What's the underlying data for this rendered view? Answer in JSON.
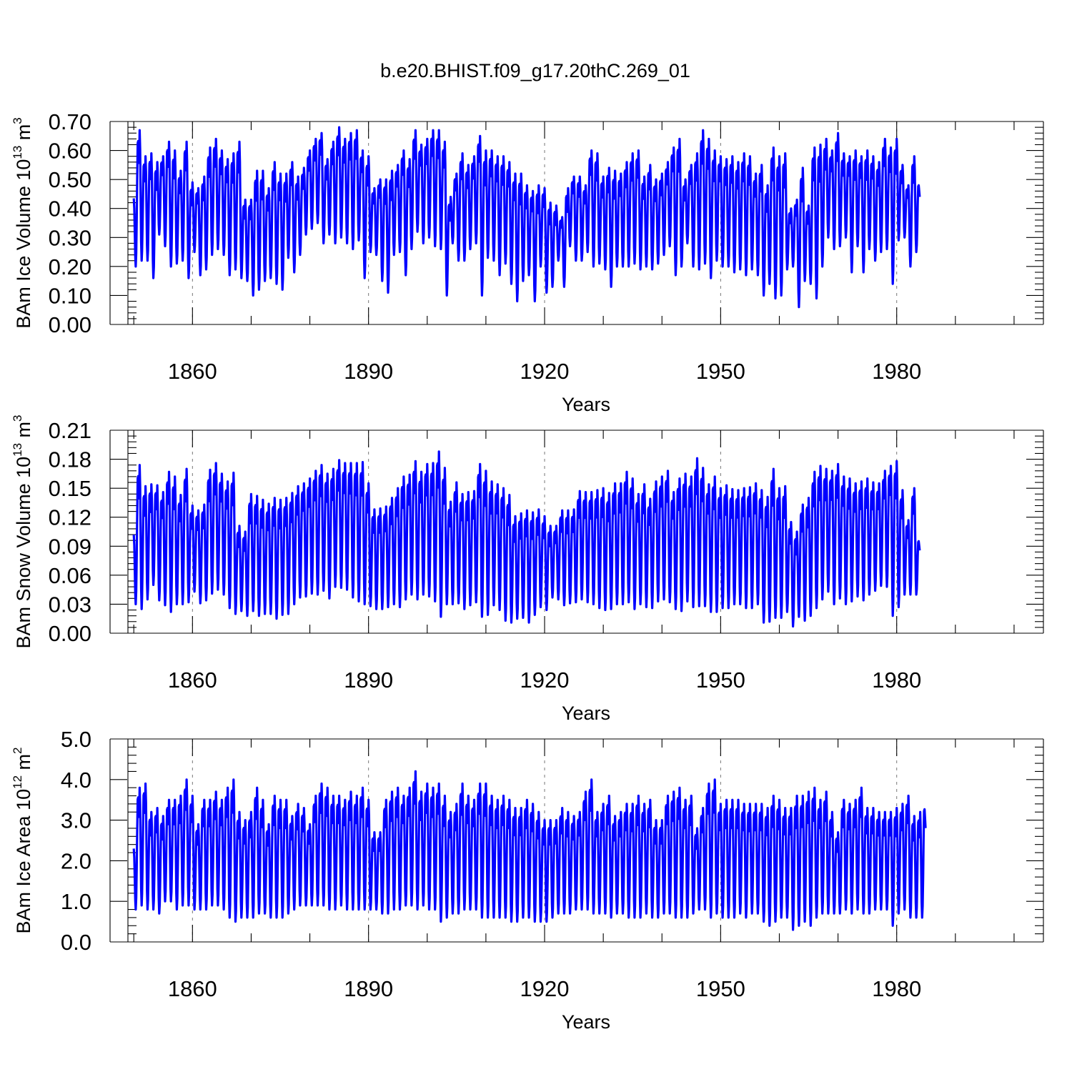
{
  "title": "b.e20.BHIST.f09_g17.20thC.269_01",
  "chart_data": [
    {
      "type": "line",
      "ylabel_main": "BAm Ice Volume 10",
      "ylabel_sup": "13",
      "ylabel_unit": " m",
      "ylabel_unit_sup": "3",
      "xlabel": "Years",
      "xlim": [
        1849,
        2005
      ],
      "ylim": [
        0,
        0.7
      ],
      "yticks": [
        "0.00",
        "0.10",
        "0.20",
        "0.30",
        "0.40",
        "0.50",
        "0.60",
        "0.70"
      ],
      "xticks": [
        "1860",
        "1890",
        "1920",
        "1950",
        "1980"
      ],
      "grid": "dashed vertical at labeled years",
      "line_color": "#0000ff",
      "series": [
        {
          "year_start": 1850,
          "annual_max": [
            0.67,
            0.58,
            0.59,
            0.56,
            0.58,
            0.63,
            0.6,
            0.53,
            0.63,
            0.49,
            0.47,
            0.51,
            0.61,
            0.64,
            0.6,
            0.57,
            0.59,
            0.63,
            0.43,
            0.43,
            0.53,
            0.53,
            0.47,
            0.56,
            0.52,
            0.52,
            0.56,
            0.51,
            0.54,
            0.6,
            0.64,
            0.66,
            0.57,
            0.63,
            0.68,
            0.64,
            0.66,
            0.67,
            0.6,
            0.58,
            0.47,
            0.5,
            0.5,
            0.53,
            0.55,
            0.6,
            0.57,
            0.67,
            0.62,
            0.64,
            0.67,
            0.67,
            0.63,
            0.44,
            0.52,
            0.59,
            0.55,
            0.58,
            0.65,
            0.6,
            0.6,
            0.58,
            0.58,
            0.56,
            0.52,
            0.52,
            0.48,
            0.46,
            0.48,
            0.47,
            0.42,
            0.41,
            0.37,
            0.47,
            0.51,
            0.51,
            0.48,
            0.6,
            0.59,
            0.51,
            0.54,
            0.53,
            0.52,
            0.56,
            0.59,
            0.6,
            0.51,
            0.55,
            0.5,
            0.52,
            0.56,
            0.61,
            0.64,
            0.5,
            0.55,
            0.59,
            0.67,
            0.64,
            0.6,
            0.58,
            0.57,
            0.58,
            0.56,
            0.59,
            0.58,
            0.52,
            0.55,
            0.48,
            0.61,
            0.58,
            0.59,
            0.4,
            0.43,
            0.54,
            0.41,
            0.61,
            0.62,
            0.64,
            0.6,
            0.66,
            0.59,
            0.58,
            0.6,
            0.58,
            0.6,
            0.58,
            0.56,
            0.64,
            0.61,
            0.64,
            0.55,
            0.48,
            0.58,
            0.5
          ],
          "annual_min": [
            0.2,
            0.22,
            0.22,
            0.16,
            0.31,
            0.27,
            0.2,
            0.21,
            0.22,
            0.16,
            0.25,
            0.17,
            0.19,
            0.24,
            0.26,
            0.24,
            0.17,
            0.19,
            0.16,
            0.15,
            0.1,
            0.12,
            0.15,
            0.16,
            0.14,
            0.12,
            0.23,
            0.18,
            0.24,
            0.31,
            0.33,
            0.35,
            0.28,
            0.31,
            0.28,
            0.3,
            0.28,
            0.26,
            0.29,
            0.16,
            0.25,
            0.24,
            0.15,
            0.11,
            0.24,
            0.25,
            0.17,
            0.26,
            0.32,
            0.28,
            0.3,
            0.27,
            0.26,
            0.1,
            0.28,
            0.22,
            0.22,
            0.26,
            0.28,
            0.1,
            0.23,
            0.22,
            0.17,
            0.21,
            0.14,
            0.08,
            0.15,
            0.17,
            0.08,
            0.2,
            0.11,
            0.13,
            0.22,
            0.13,
            0.27,
            0.22,
            0.22,
            0.25,
            0.2,
            0.21,
            0.19,
            0.13,
            0.2,
            0.2,
            0.2,
            0.21,
            0.19,
            0.2,
            0.19,
            0.21,
            0.24,
            0.27,
            0.17,
            0.2,
            0.28,
            0.2,
            0.19,
            0.21,
            0.16,
            0.22,
            0.2,
            0.2,
            0.18,
            0.19,
            0.17,
            0.19,
            0.17,
            0.1,
            0.14,
            0.09,
            0.1,
            0.19,
            0.2,
            0.06,
            0.15,
            0.14,
            0.09,
            0.2,
            0.3,
            0.26,
            0.27,
            0.3,
            0.18,
            0.27,
            0.18,
            0.26,
            0.22,
            0.25,
            0.26,
            0.14,
            0.29,
            0.3,
            0.2,
            0.25
          ]
        }
      ]
    },
    {
      "type": "line",
      "ylabel_main": "BAm Snow Volume 10",
      "ylabel_sup": "13",
      "ylabel_unit": " m",
      "ylabel_unit_sup": "3",
      "xlabel": "Years",
      "xlim": [
        1849,
        2005
      ],
      "ylim": [
        0,
        0.21
      ],
      "yticks": [
        "0.00",
        "0.03",
        "0.06",
        "0.09",
        "0.12",
        "0.15",
        "0.18",
        "0.21"
      ],
      "xticks": [
        "1860",
        "1890",
        "1920",
        "1950",
        "1980"
      ],
      "grid": "dashed vertical at labeled years",
      "line_color": "#0000ff",
      "series": [
        {
          "year_start": 1850,
          "annual_max": [
            0.174,
            0.152,
            0.154,
            0.153,
            0.146,
            0.167,
            0.162,
            0.143,
            0.17,
            0.132,
            0.127,
            0.133,
            0.169,
            0.176,
            0.165,
            0.157,
            0.166,
            0.111,
            0.105,
            0.144,
            0.142,
            0.138,
            0.134,
            0.14,
            0.138,
            0.14,
            0.145,
            0.152,
            0.155,
            0.16,
            0.168,
            0.174,
            0.165,
            0.17,
            0.179,
            0.176,
            0.176,
            0.176,
            0.177,
            0.155,
            0.128,
            0.129,
            0.131,
            0.14,
            0.15,
            0.162,
            0.164,
            0.178,
            0.167,
            0.175,
            0.176,
            0.188,
            0.171,
            0.136,
            0.156,
            0.144,
            0.146,
            0.147,
            0.175,
            0.168,
            0.157,
            0.154,
            0.15,
            0.143,
            0.121,
            0.124,
            0.127,
            0.125,
            0.128,
            0.121,
            0.111,
            0.111,
            0.127,
            0.127,
            0.128,
            0.147,
            0.146,
            0.146,
            0.148,
            0.15,
            0.145,
            0.155,
            0.155,
            0.167,
            0.16,
            0.144,
            0.154,
            0.139,
            0.157,
            0.162,
            0.168,
            0.146,
            0.16,
            0.165,
            0.162,
            0.181,
            0.171,
            0.154,
            0.162,
            0.15,
            0.153,
            0.149,
            0.148,
            0.15,
            0.151,
            0.155,
            0.148,
            0.141,
            0.17,
            0.15,
            0.152,
            0.115,
            0.105,
            0.133,
            0.14,
            0.167,
            0.173,
            0.17,
            0.168,
            0.175,
            0.162,
            0.16,
            0.155,
            0.157,
            0.16,
            0.156,
            0.155,
            0.168,
            0.173,
            0.178,
            0.148,
            0.117,
            0.15,
            0.1
          ],
          "annual_min": [
            0.03,
            0.025,
            0.035,
            0.05,
            0.034,
            0.029,
            0.022,
            0.03,
            0.03,
            0.032,
            0.043,
            0.031,
            0.034,
            0.041,
            0.045,
            0.04,
            0.026,
            0.02,
            0.023,
            0.018,
            0.023,
            0.018,
            0.02,
            0.02,
            0.015,
            0.019,
            0.02,
            0.03,
            0.037,
            0.038,
            0.041,
            0.04,
            0.044,
            0.036,
            0.048,
            0.047,
            0.045,
            0.037,
            0.033,
            0.03,
            0.028,
            0.025,
            0.025,
            0.027,
            0.03,
            0.027,
            0.035,
            0.04,
            0.035,
            0.04,
            0.038,
            0.033,
            0.017,
            0.03,
            0.03,
            0.031,
            0.025,
            0.029,
            0.032,
            0.017,
            0.019,
            0.029,
            0.024,
            0.013,
            0.011,
            0.015,
            0.016,
            0.011,
            0.019,
            0.027,
            0.024,
            0.037,
            0.035,
            0.029,
            0.031,
            0.032,
            0.035,
            0.032,
            0.03,
            0.026,
            0.024,
            0.025,
            0.03,
            0.03,
            0.032,
            0.025,
            0.03,
            0.027,
            0.026,
            0.033,
            0.035,
            0.032,
            0.025,
            0.023,
            0.033,
            0.027,
            0.028,
            0.028,
            0.022,
            0.022,
            0.026,
            0.026,
            0.03,
            0.03,
            0.026,
            0.026,
            0.03,
            0.011,
            0.012,
            0.016,
            0.016,
            0.022,
            0.007,
            0.017,
            0.013,
            0.018,
            0.026,
            0.035,
            0.043,
            0.03,
            0.036,
            0.03,
            0.033,
            0.038,
            0.034,
            0.04,
            0.044,
            0.049,
            0.048,
            0.018,
            0.027,
            0.04,
            0.04,
            0.04
          ]
        }
      ]
    },
    {
      "type": "line",
      "ylabel_main": "BAm Ice Area 10",
      "ylabel_sup": "12",
      "ylabel_unit": " m",
      "ylabel_unit_sup": "2",
      "xlabel": "Years",
      "xlim": [
        1849,
        2005
      ],
      "ylim": [
        0,
        5.0
      ],
      "yticks": [
        "0.0",
        "1.0",
        "2.0",
        "3.0",
        "4.0",
        "5.0"
      ],
      "xticks": [
        "1860",
        "1890",
        "1920",
        "1950",
        "1980"
      ],
      "grid": "dashed vertical at labeled years",
      "line_color": "#0000ff",
      "series": [
        {
          "year_start": 1850,
          "annual_max": [
            3.8,
            3.9,
            3.2,
            3.3,
            3.1,
            3.5,
            3.5,
            3.6,
            4.0,
            3.6,
            2.9,
            3.5,
            3.5,
            3.7,
            3.5,
            3.8,
            4.0,
            3.2,
            3.0,
            3.2,
            3.8,
            3.5,
            2.9,
            3.6,
            3.5,
            3.5,
            3.1,
            3.4,
            3.3,
            2.9,
            3.6,
            3.9,
            3.8,
            3.6,
            3.6,
            3.5,
            3.7,
            3.6,
            3.8,
            3.5,
            2.7,
            2.7,
            3.5,
            3.7,
            3.8,
            3.6,
            3.8,
            4.2,
            3.7,
            3.9,
            3.8,
            3.9,
            3.6,
            3.2,
            3.4,
            3.9,
            3.6,
            3.5,
            3.9,
            3.9,
            3.6,
            3.5,
            3.6,
            3.5,
            3.3,
            3.3,
            3.5,
            3.4,
            3.2,
            3.0,
            3.0,
            3.0,
            3.3,
            3.2,
            3.1,
            3.2,
            3.7,
            4.0,
            3.2,
            3.4,
            3.6,
            3.1,
            3.2,
            3.4,
            3.4,
            3.6,
            3.4,
            3.5,
            3.0,
            3.0,
            3.6,
            3.7,
            3.8,
            3.5,
            3.6,
            2.8,
            3.3,
            3.9,
            4.0,
            3.4,
            3.5,
            3.5,
            3.5,
            3.4,
            3.4,
            3.4,
            3.4,
            3.3,
            3.6,
            3.5,
            3.3,
            3.3,
            3.6,
            3.6,
            3.7,
            3.8,
            3.5,
            3.7,
            3.2,
            2.7,
            3.5,
            3.4,
            3.5,
            3.8,
            3.3,
            3.3,
            3.2,
            3.2,
            3.2,
            3.3,
            3.4,
            3.6,
            3.1,
            3.2,
            3.5,
            3.2,
            3.1
          ],
          "annual_min": [
            0.8,
            0.9,
            0.8,
            0.8,
            0.7,
            1.0,
            1.0,
            0.8,
            0.9,
            0.9,
            0.8,
            0.8,
            0.8,
            0.9,
            0.9,
            0.8,
            0.6,
            0.5,
            0.6,
            0.6,
            0.6,
            0.7,
            0.7,
            0.6,
            0.6,
            0.6,
            0.7,
            0.8,
            0.9,
            0.9,
            0.9,
            0.9,
            0.9,
            0.8,
            0.8,
            0.9,
            0.8,
            0.8,
            0.8,
            0.8,
            0.8,
            0.8,
            0.7,
            0.7,
            0.8,
            0.8,
            0.9,
            0.9,
            0.8,
            0.9,
            0.8,
            0.8,
            0.5,
            0.6,
            0.7,
            0.7,
            0.8,
            0.8,
            0.8,
            0.6,
            0.6,
            0.6,
            0.6,
            0.6,
            0.5,
            0.5,
            0.6,
            0.6,
            0.5,
            0.5,
            0.5,
            0.6,
            0.7,
            0.7,
            0.7,
            0.8,
            0.8,
            0.8,
            0.7,
            0.7,
            0.7,
            0.6,
            0.7,
            0.7,
            0.6,
            0.6,
            0.6,
            0.7,
            0.6,
            0.6,
            0.7,
            0.7,
            0.6,
            0.6,
            0.6,
            0.7,
            0.8,
            0.8,
            0.6,
            0.7,
            0.6,
            0.6,
            0.6,
            0.7,
            0.6,
            0.7,
            0.7,
            0.5,
            0.4,
            0.5,
            0.6,
            0.6,
            0.3,
            0.4,
            0.5,
            0.4,
            0.6,
            0.7,
            0.7,
            0.7,
            0.7,
            0.8,
            0.7,
            0.8,
            0.7,
            0.7,
            0.8,
            0.8,
            0.8,
            0.4,
            0.7,
            0.8,
            0.6,
            0.6,
            0.6
          ]
        }
      ]
    }
  ]
}
